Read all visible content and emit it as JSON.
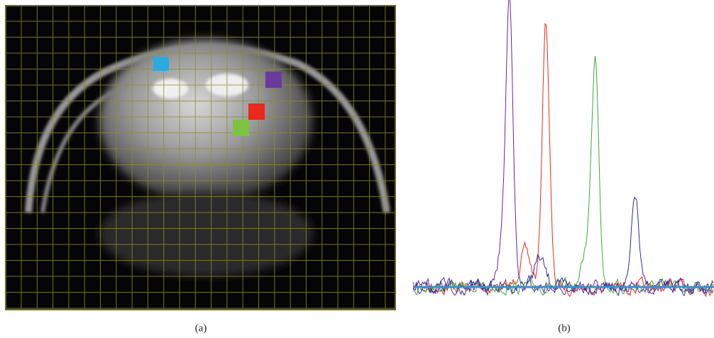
{
  "captions": {
    "a": "(a)",
    "b": "(b)"
  }
}
